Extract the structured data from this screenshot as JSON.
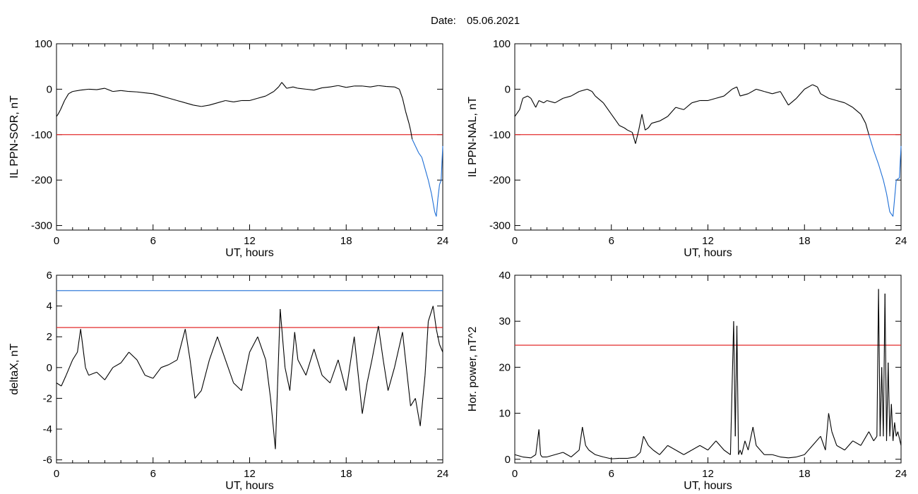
{
  "figure": {
    "date_label": "Date:",
    "date_value": "05.06.2021"
  },
  "colors": {
    "threshold": "#e32b2b",
    "highlight": "#1f6fd6",
    "trace": "#000000"
  },
  "chart_data": [
    {
      "id": "p1",
      "type": "line",
      "xlabel": "UT, hours",
      "ylabel": "IL PPN-SOR, nT",
      "xlim": [
        0,
        24
      ],
      "ylim": [
        -310,
        100
      ],
      "xticks": [
        0,
        6,
        12,
        18,
        24
      ],
      "yticks": [
        -300,
        -200,
        -100,
        0,
        100
      ],
      "threshold": -100,
      "highlight_below": -100,
      "x": [
        0,
        0.1,
        0.25,
        0.5,
        0.75,
        1,
        1.5,
        2,
        2.5,
        3,
        3.5,
        4,
        4.5,
        5,
        5.5,
        6,
        6.5,
        7,
        7.5,
        8,
        8.5,
        9,
        9.5,
        10,
        10.5,
        11,
        11.5,
        12,
        12.5,
        13,
        13.5,
        13.8,
        14,
        14.3,
        14.7,
        15,
        15.5,
        16,
        16.5,
        17,
        17.5,
        18,
        18.5,
        19,
        19.5,
        20,
        20.5,
        21,
        21.3,
        21.5,
        21.7,
        21.9,
        22,
        22.1,
        22.3,
        22.5,
        22.7,
        22.9,
        23.1,
        23.3,
        23.4,
        23.5,
        23.6,
        23.7,
        23.8,
        23.9,
        24
      ],
      "y": [
        -60,
        -55,
        -45,
        -25,
        -10,
        -5,
        -2,
        0,
        -1,
        2,
        -5,
        -3,
        -5,
        -6,
        -8,
        -10,
        -15,
        -20,
        -25,
        -30,
        -35,
        -38,
        -35,
        -30,
        -25,
        -28,
        -25,
        -25,
        -20,
        -15,
        -5,
        5,
        15,
        2,
        5,
        2,
        0,
        -2,
        3,
        5,
        8,
        4,
        7,
        7,
        5,
        8,
        6,
        5,
        0,
        -20,
        -50,
        -75,
        -90,
        -110,
        -125,
        -140,
        -150,
        -175,
        -200,
        -230,
        -250,
        -270,
        -280,
        -240,
        -210,
        -200,
        -125
      ]
    },
    {
      "id": "p2",
      "type": "line",
      "xlabel": "UT, hours",
      "ylabel": "IL PPN-NAL, nT",
      "xlim": [
        0,
        24
      ],
      "ylim": [
        -310,
        100
      ],
      "xticks": [
        0,
        6,
        12,
        18,
        24
      ],
      "yticks": [
        -300,
        -200,
        -100,
        0,
        100
      ],
      "threshold": -100,
      "highlight_below": -100,
      "x": [
        0,
        0.1,
        0.3,
        0.5,
        0.8,
        1,
        1.3,
        1.5,
        1.8,
        2,
        2.5,
        3,
        3.5,
        4,
        4.5,
        4.8,
        5,
        5.5,
        6,
        6.3,
        6.5,
        6.8,
        7,
        7.3,
        7.5,
        7.7,
        7.9,
        8.1,
        8.3,
        8.5,
        9,
        9.5,
        10,
        10.5,
        11,
        11.5,
        12,
        12.5,
        13,
        13.5,
        13.8,
        14,
        14.5,
        15,
        15.5,
        16,
        16.5,
        17,
        17.5,
        18,
        18.5,
        18.8,
        19,
        19.5,
        20,
        20.5,
        21,
        21.5,
        21.8,
        22,
        22.3,
        22.6,
        22.9,
        23.1,
        23.3,
        23.5,
        23.7,
        23.9,
        24
      ],
      "y": [
        -60,
        -55,
        -45,
        -20,
        -15,
        -20,
        -40,
        -25,
        -30,
        -25,
        -30,
        -20,
        -15,
        -5,
        0,
        -5,
        -15,
        -30,
        -55,
        -70,
        -80,
        -85,
        -90,
        -95,
        -120,
        -90,
        -55,
        -90,
        -85,
        -75,
        -70,
        -60,
        -40,
        -45,
        -30,
        -25,
        -25,
        -20,
        -15,
        0,
        5,
        -15,
        -10,
        0,
        -5,
        -10,
        -5,
        -35,
        -20,
        0,
        10,
        5,
        -10,
        -20,
        -25,
        -30,
        -40,
        -55,
        -75,
        -100,
        -135,
        -165,
        -200,
        -230,
        -270,
        -280,
        -200,
        -195,
        -125
      ]
    },
    {
      "id": "p3",
      "type": "line",
      "xlabel": "UT, hours",
      "ylabel": "deltaX, nT",
      "xlim": [
        0,
        24
      ],
      "ylim": [
        -6.2,
        6
      ],
      "xticks": [
        0,
        6,
        12,
        18,
        24
      ],
      "yticks": [
        -6,
        -4,
        -2,
        0,
        2,
        4,
        6
      ],
      "threshold": 2.6,
      "threshold2": 5.0,
      "x": [
        0,
        0.3,
        0.6,
        1,
        1.3,
        1.5,
        1.8,
        2,
        2.5,
        3,
        3.5,
        4,
        4.5,
        5,
        5.5,
        6,
        6.5,
        7,
        7.5,
        8,
        8.3,
        8.6,
        9,
        9.5,
        10,
        10.5,
        11,
        11.5,
        12,
        12.5,
        13,
        13.3,
        13.6,
        13.9,
        14.2,
        14.5,
        14.8,
        15,
        15.5,
        16,
        16.5,
        17,
        17.5,
        18,
        18.5,
        19,
        19.3,
        19.6,
        20,
        20.3,
        20.6,
        21,
        21.5,
        22,
        22.3,
        22.6,
        22.9,
        23.1,
        23.4,
        23.6,
        23.8,
        24
      ],
      "y": [
        -1.0,
        -1.2,
        -0.5,
        0.5,
        1.0,
        2.5,
        0.0,
        -0.5,
        -0.3,
        -0.8,
        0.0,
        0.3,
        1.0,
        0.5,
        -0.5,
        -0.7,
        0.0,
        0.2,
        0.5,
        2.5,
        0.5,
        -2.0,
        -1.5,
        0.5,
        2.0,
        0.5,
        -1.0,
        -1.5,
        1.0,
        2.0,
        0.5,
        -2.0,
        -5.3,
        3.8,
        0.0,
        -1.5,
        2.3,
        0.5,
        -0.5,
        1.2,
        -0.5,
        -1.0,
        0.5,
        -1.5,
        2.0,
        -3.0,
        -1.0,
        0.5,
        2.7,
        0.5,
        -1.5,
        0.0,
        2.3,
        -2.5,
        -2.0,
        -3.8,
        -0.5,
        3.0,
        4.0,
        2.5,
        1.5,
        1.0
      ]
    },
    {
      "id": "p4",
      "type": "line",
      "xlabel": "UT, hours",
      "ylabel": "Hor. power, nT^2",
      "xlim": [
        0,
        24
      ],
      "ylim": [
        -0.8,
        40
      ],
      "xticks": [
        0,
        6,
        12,
        18,
        24
      ],
      "yticks": [
        0,
        10,
        20,
        30,
        40
      ],
      "threshold": 24.8,
      "x": [
        0,
        0.5,
        1,
        1.3,
        1.5,
        1.6,
        1.7,
        2,
        2.5,
        3,
        3.5,
        4,
        4.2,
        4.4,
        4.6,
        5,
        5.5,
        6,
        6.5,
        7,
        7.5,
        7.8,
        8,
        8.3,
        8.6,
        9,
        9.5,
        10,
        10.5,
        11,
        11.5,
        12,
        12.5,
        13,
        13.4,
        13.6,
        13.7,
        13.8,
        13.9,
        14.0,
        14.1,
        14.3,
        14.5,
        14.8,
        15,
        15.5,
        16,
        16.5,
        17,
        17.5,
        18,
        18.5,
        19,
        19.3,
        19.5,
        19.7,
        20,
        20.5,
        21,
        21.5,
        22,
        22.3,
        22.5,
        22.6,
        22.7,
        22.8,
        22.9,
        23.0,
        23.1,
        23.2,
        23.3,
        23.4,
        23.5,
        23.6,
        23.7,
        23.8,
        24
      ],
      "y": [
        1,
        0.5,
        0.3,
        1,
        6.5,
        1,
        0.5,
        0.5,
        1,
        1.5,
        0.5,
        2,
        7,
        3,
        2,
        1,
        0.5,
        0.1,
        0.2,
        0.2,
        0.5,
        1.5,
        5,
        3,
        2,
        1,
        3,
        2,
        1,
        2,
        3,
        2,
        4,
        2,
        1,
        30,
        5,
        29,
        1,
        2,
        1,
        4,
        2,
        7,
        3,
        1,
        1,
        0.5,
        0.3,
        0.5,
        1,
        3,
        5,
        2,
        10,
        6,
        3,
        2,
        4,
        3,
        6,
        4,
        5,
        37,
        5,
        20,
        5,
        36,
        4,
        21,
        5,
        12,
        4,
        8,
        5,
        6,
        3
      ]
    }
  ]
}
